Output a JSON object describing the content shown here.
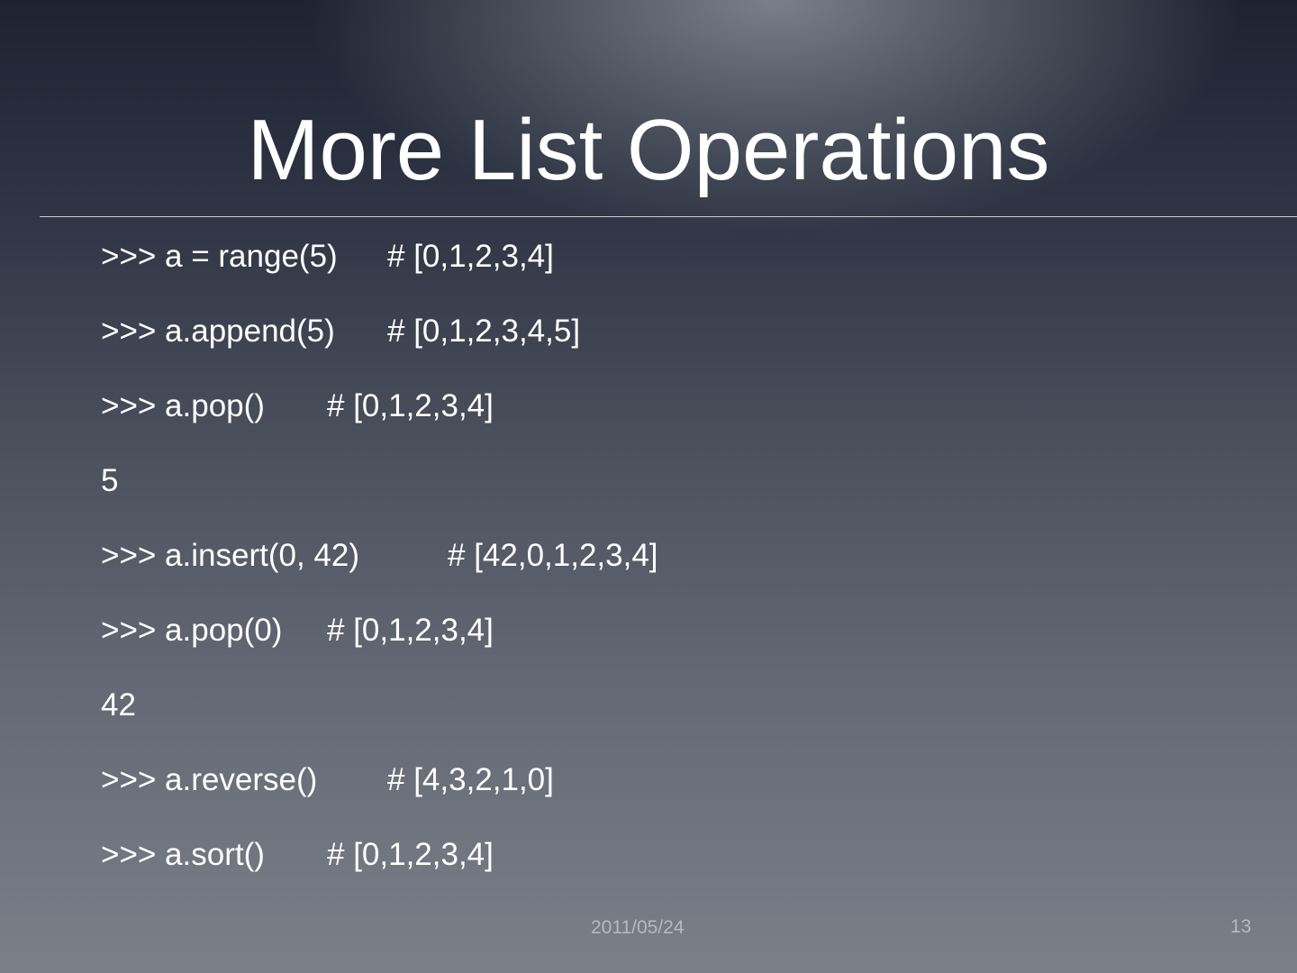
{
  "slide": {
    "title": "More List Operations",
    "lines": [
      {
        "code": ">>> a = range(5)",
        "comment": "# [0,1,2,3,4]"
      },
      {
        "code": ">>> a.append(5)",
        "comment": "# [0,1,2,3,4,5]"
      },
      {
        "code": ">>> a.pop()",
        "comment": "# [0,1,2,3,4]"
      },
      {
        "code": "5",
        "comment": ""
      },
      {
        "code": ">>> a.insert(0, 42)",
        "comment": "# [42,0,1,2,3,4]"
      },
      {
        "code": ">>> a.pop(0)",
        "comment": "# [0,1,2,3,4]"
      },
      {
        "code": "42",
        "comment": ""
      },
      {
        "code": ">>> a.reverse()",
        "comment": "# [4,3,2,1,0]"
      },
      {
        "code": ">>> a.sort()",
        "comment": "# [0,1,2,3,4]"
      }
    ],
    "date": "2011/05/24",
    "page_number": "13"
  }
}
